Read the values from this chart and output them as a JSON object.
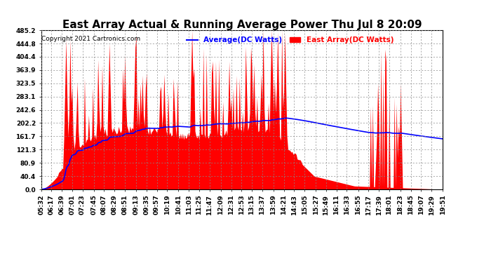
{
  "title": "East Array Actual & Running Average Power Thu Jul 8 20:09",
  "copyright": "Copyright 2021 Cartronics.com",
  "legend_avg": "Average(DC Watts)",
  "legend_east": "East Array(DC Watts)",
  "avg_color": "blue",
  "east_color": "red",
  "background_color": "#ffffff",
  "grid_color": "#888888",
  "yticks": [
    0.0,
    40.4,
    80.9,
    121.3,
    161.7,
    202.2,
    242.6,
    283.1,
    323.5,
    363.9,
    404.4,
    444.8,
    485.2
  ],
  "ymax": 485.2,
  "ymin": 0.0,
  "title_fontsize": 11,
  "label_fontsize": 7.5,
  "tick_fontsize": 6.5,
  "time_labels": [
    "05:32",
    "06:17",
    "06:39",
    "07:01",
    "07:23",
    "07:45",
    "08:07",
    "08:29",
    "08:51",
    "09:13",
    "09:35",
    "09:57",
    "10:19",
    "10:41",
    "11:03",
    "11:25",
    "11:47",
    "12:09",
    "12:31",
    "12:53",
    "13:15",
    "13:37",
    "13:59",
    "14:21",
    "14:43",
    "15:05",
    "15:27",
    "15:49",
    "16:11",
    "16:33",
    "16:55",
    "17:17",
    "17:39",
    "18:01",
    "18:23",
    "18:45",
    "19:07",
    "19:29",
    "19:51"
  ]
}
